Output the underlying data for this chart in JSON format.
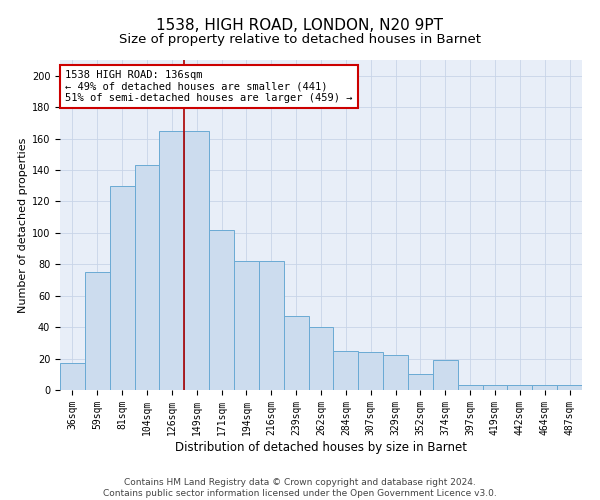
{
  "title1": "1538, HIGH ROAD, LONDON, N20 9PT",
  "title2": "Size of property relative to detached houses in Barnet",
  "xlabel": "Distribution of detached houses by size in Barnet",
  "ylabel": "Number of detached properties",
  "categories": [
    "36sqm",
    "59sqm",
    "81sqm",
    "104sqm",
    "126sqm",
    "149sqm",
    "171sqm",
    "194sqm",
    "216sqm",
    "239sqm",
    "262sqm",
    "284sqm",
    "307sqm",
    "329sqm",
    "352sqm",
    "374sqm",
    "397sqm",
    "419sqm",
    "442sqm",
    "464sqm",
    "487sqm"
  ],
  "values": [
    17,
    75,
    130,
    143,
    165,
    165,
    102,
    82,
    82,
    47,
    40,
    25,
    24,
    22,
    10,
    19,
    3,
    3,
    3,
    3,
    3
  ],
  "bar_color": "#ccdcee",
  "bar_edge_color": "#6aaad4",
  "vline_x": 4.5,
  "vline_color": "#aa0000",
  "annotation_text": "1538 HIGH ROAD: 136sqm\n← 49% of detached houses are smaller (441)\n51% of semi-detached houses are larger (459) →",
  "annotation_box_color": "#ffffff",
  "annotation_box_edge_color": "#cc0000",
  "ylim": [
    0,
    210
  ],
  "yticks": [
    0,
    20,
    40,
    60,
    80,
    100,
    120,
    140,
    160,
    180,
    200
  ],
  "footer1": "Contains HM Land Registry data © Crown copyright and database right 2024.",
  "footer2": "Contains public sector information licensed under the Open Government Licence v3.0.",
  "title1_fontsize": 11,
  "title2_fontsize": 9.5,
  "xlabel_fontsize": 8.5,
  "ylabel_fontsize": 8,
  "tick_fontsize": 7,
  "annotation_fontsize": 7.5,
  "footer_fontsize": 6.5,
  "grid_color": "#c8d4e8",
  "background_color": "#e8eef8"
}
